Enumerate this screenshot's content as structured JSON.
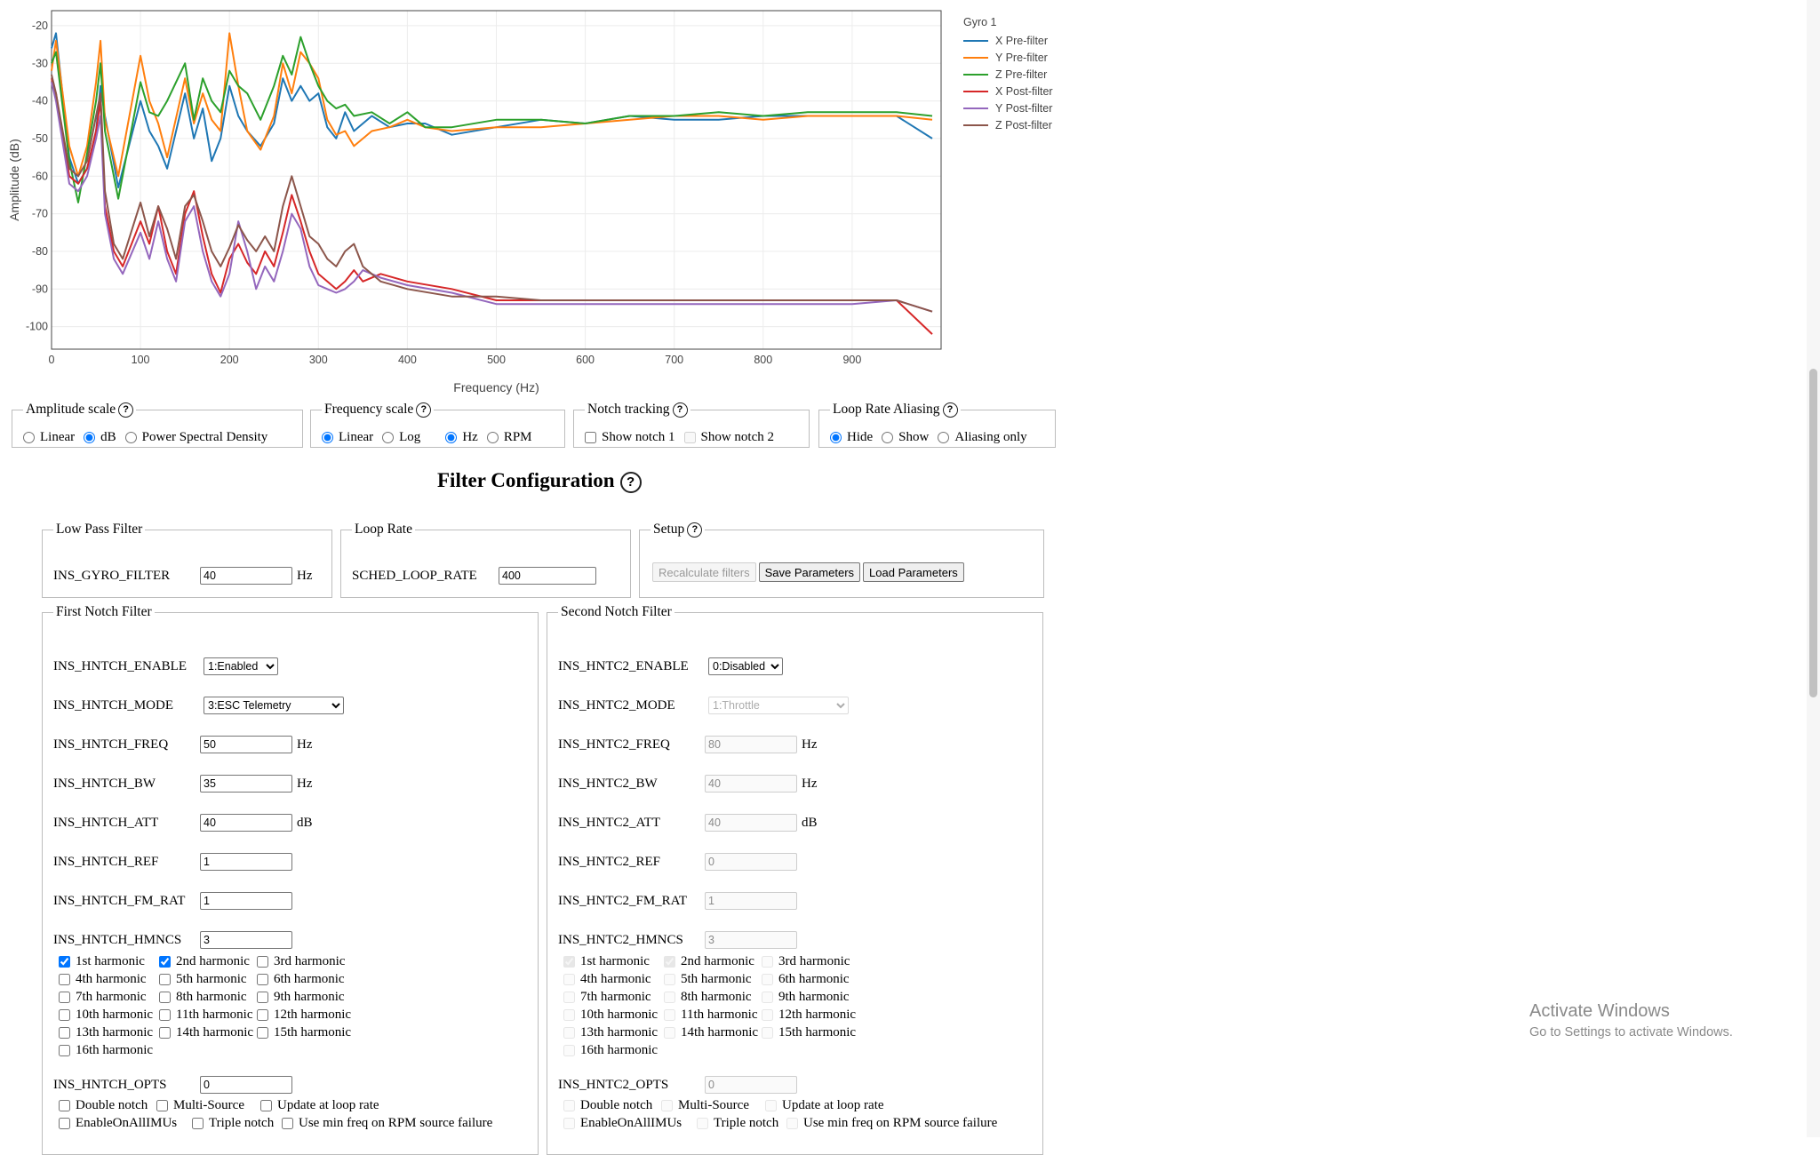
{
  "chart_data": {
    "type": "line",
    "title": "",
    "xlabel": "Frequency (Hz)",
    "ylabel": "Amplitude (dB)",
    "xlim": [
      0,
      1000
    ],
    "ylim": [
      -106,
      -16
    ],
    "x_ticks": [
      0,
      100,
      200,
      300,
      400,
      500,
      600,
      700,
      800,
      900
    ],
    "y_ticks": [
      -20,
      -30,
      -40,
      -50,
      -60,
      -70,
      -80,
      -90,
      -100
    ],
    "grid": true,
    "legend_title": "Gyro 1",
    "legend_position": "right",
    "series": [
      {
        "name": "X Pre-filter",
        "color": "#1f77b4",
        "x": [
          0,
          5,
          20,
          30,
          40,
          50,
          55,
          60,
          75,
          100,
          110,
          120,
          130,
          150,
          160,
          170,
          180,
          190,
          200,
          210,
          220,
          235,
          250,
          260,
          270,
          280,
          290,
          300,
          310,
          320,
          330,
          340,
          360,
          380,
          400,
          420,
          450,
          500,
          550,
          600,
          650,
          700,
          750,
          800,
          850,
          900,
          950,
          990
        ],
        "y": [
          -26,
          -22,
          -55,
          -62,
          -58,
          -48,
          -36,
          -44,
          -63,
          -40,
          -48,
          -52,
          -58,
          -38,
          -50,
          -42,
          -56,
          -50,
          -36,
          -44,
          -48,
          -52,
          -46,
          -34,
          -40,
          -36,
          -40,
          -38,
          -47,
          -50,
          -43,
          -48,
          -44,
          -47,
          -46,
          -46,
          -49,
          -47,
          -45,
          -46,
          -44,
          -45,
          -45,
          -44,
          -44,
          -44,
          -44,
          -50
        ]
      },
      {
        "name": "Y Pre-filter",
        "color": "#ff7f0e",
        "x": [
          0,
          5,
          20,
          30,
          40,
          50,
          55,
          60,
          75,
          100,
          110,
          120,
          130,
          150,
          160,
          170,
          180,
          190,
          200,
          210,
          220,
          235,
          250,
          260,
          270,
          280,
          290,
          300,
          310,
          320,
          330,
          340,
          360,
          380,
          400,
          420,
          450,
          500,
          550,
          600,
          650,
          700,
          750,
          800,
          850,
          900,
          950,
          990
        ],
        "y": [
          -32,
          -24,
          -52,
          -60,
          -52,
          -35,
          -24,
          -45,
          -60,
          -28,
          -40,
          -46,
          -55,
          -34,
          -46,
          -38,
          -45,
          -48,
          -22,
          -36,
          -48,
          -53,
          -44,
          -30,
          -38,
          -27,
          -30,
          -34,
          -45,
          -49,
          -48,
          -52,
          -48,
          -47,
          -45,
          -47,
          -48,
          -47,
          -47,
          -46,
          -45,
          -44,
          -44,
          -45,
          -44,
          -44,
          -44,
          -45
        ]
      },
      {
        "name": "Z Pre-filter",
        "color": "#2ca02c",
        "x": [
          0,
          5,
          20,
          30,
          40,
          50,
          55,
          60,
          75,
          100,
          110,
          120,
          130,
          150,
          160,
          170,
          180,
          190,
          200,
          210,
          220,
          235,
          250,
          260,
          270,
          280,
          290,
          300,
          310,
          320,
          330,
          340,
          360,
          380,
          400,
          420,
          450,
          500,
          550,
          600,
          650,
          700,
          750,
          800,
          850,
          900,
          950,
          990
        ],
        "y": [
          -30,
          -27,
          -56,
          -67,
          -54,
          -40,
          -30,
          -48,
          -66,
          -35,
          -43,
          -44,
          -40,
          -30,
          -45,
          -34,
          -40,
          -43,
          -32,
          -36,
          -38,
          -45,
          -36,
          -28,
          -33,
          -23,
          -30,
          -36,
          -40,
          -42,
          -41,
          -44,
          -43,
          -46,
          -43,
          -47,
          -47,
          -45,
          -45,
          -46,
          -44,
          -44,
          -43,
          -44,
          -43,
          -43,
          -43,
          -44
        ]
      },
      {
        "name": "X Post-filter",
        "color": "#d62728",
        "x": [
          0,
          5,
          20,
          30,
          40,
          50,
          55,
          60,
          70,
          80,
          100,
          110,
          120,
          130,
          140,
          150,
          160,
          170,
          180,
          190,
          200,
          210,
          220,
          230,
          240,
          250,
          260,
          270,
          280,
          290,
          300,
          310,
          320,
          330,
          340,
          350,
          370,
          400,
          450,
          500,
          550,
          600,
          650,
          700,
          750,
          800,
          850,
          900,
          950,
          990
        ],
        "y": [
          -34,
          -38,
          -60,
          -62,
          -58,
          -48,
          -40,
          -68,
          -80,
          -84,
          -72,
          -78,
          -68,
          -80,
          -86,
          -70,
          -64,
          -76,
          -86,
          -91,
          -82,
          -78,
          -83,
          -86,
          -80,
          -84,
          -75,
          -65,
          -72,
          -80,
          -86,
          -88,
          -90,
          -88,
          -85,
          -88,
          -86,
          -88,
          -90,
          -93,
          -93,
          -93,
          -93,
          -93,
          -93,
          -93,
          -93,
          -93,
          -93,
          -102
        ]
      },
      {
        "name": "Y Post-filter",
        "color": "#9467bd",
        "x": [
          0,
          5,
          20,
          30,
          40,
          50,
          55,
          60,
          70,
          80,
          100,
          110,
          120,
          130,
          140,
          150,
          160,
          170,
          180,
          190,
          200,
          210,
          220,
          230,
          240,
          250,
          260,
          270,
          280,
          290,
          300,
          310,
          320,
          330,
          340,
          350,
          370,
          400,
          450,
          500,
          550,
          600,
          650,
          700,
          750,
          800,
          850,
          900,
          950,
          990
        ],
        "y": [
          -35,
          -40,
          -62,
          -64,
          -60,
          -50,
          -44,
          -70,
          -82,
          -86,
          -75,
          -82,
          -72,
          -82,
          -88,
          -72,
          -68,
          -80,
          -88,
          -92,
          -86,
          -72,
          -80,
          -90,
          -84,
          -88,
          -80,
          -70,
          -74,
          -84,
          -89,
          -90,
          -91,
          -90,
          -88,
          -85,
          -87,
          -89,
          -91,
          -94,
          -94,
          -94,
          -94,
          -94,
          -94,
          -94,
          -94,
          -94,
          -93,
          -96
        ]
      },
      {
        "name": "Z Post-filter",
        "color": "#8c564b",
        "x": [
          0,
          5,
          20,
          30,
          40,
          50,
          55,
          60,
          70,
          80,
          100,
          110,
          120,
          130,
          140,
          150,
          160,
          170,
          180,
          190,
          200,
          210,
          220,
          230,
          240,
          250,
          260,
          270,
          280,
          290,
          300,
          310,
          320,
          330,
          340,
          350,
          370,
          400,
          450,
          500,
          550,
          600,
          650,
          700,
          750,
          800,
          850,
          900,
          950,
          990
        ],
        "y": [
          -33,
          -38,
          -58,
          -60,
          -56,
          -44,
          -38,
          -64,
          -78,
          -82,
          -67,
          -76,
          -68,
          -74,
          -82,
          -68,
          -65,
          -72,
          -80,
          -84,
          -79,
          -73,
          -77,
          -80,
          -76,
          -80,
          -68,
          -60,
          -68,
          -76,
          -78,
          -82,
          -84,
          -80,
          -78,
          -84,
          -88,
          -90,
          -92,
          -92,
          -93,
          -93,
          -93,
          -93,
          -93,
          -93,
          -93,
          -93,
          -93,
          -96
        ]
      }
    ]
  },
  "controls": {
    "amplitude": {
      "legend": "Amplitude scale",
      "options": [
        "Linear",
        "dB",
        "Power Spectral Density"
      ],
      "selected": "dB"
    },
    "frequency": {
      "legend": "Frequency scale",
      "options": [
        "Linear",
        "Log",
        "Hz",
        "RPM"
      ],
      "selected": [
        "Linear",
        "Hz"
      ]
    },
    "notch": {
      "legend": "Notch tracking",
      "options": [
        "Show notch 1",
        "Show notch 2"
      ]
    },
    "aliasing": {
      "legend": "Loop Rate Aliasing",
      "options": [
        "Hide",
        "Show",
        "Aliasing only"
      ],
      "selected": "Hide"
    }
  },
  "filter_config": {
    "title": "Filter Configuration",
    "lpf": {
      "legend": "Low Pass Filter",
      "param": "INS_GYRO_FILTER",
      "value": "40",
      "unit": "Hz"
    },
    "loop": {
      "legend": "Loop Rate",
      "param": "SCHED_LOOP_RATE",
      "value": "400"
    },
    "setup": {
      "legend": "Setup",
      "buttons": [
        "Recalculate filters",
        "Save Parameters",
        "Load Parameters"
      ]
    }
  },
  "notch1": {
    "legend": "First Notch Filter",
    "enable": {
      "name": "INS_HNTCH_ENABLE",
      "value": "1:Enabled"
    },
    "mode": {
      "name": "INS_HNTCH_MODE",
      "value": "3:ESC Telemetry"
    },
    "freq": {
      "name": "INS_HNTCH_FREQ",
      "value": "50",
      "unit": "Hz"
    },
    "bw": {
      "name": "INS_HNTCH_BW",
      "value": "35",
      "unit": "Hz"
    },
    "att": {
      "name": "INS_HNTCH_ATT",
      "value": "40",
      "unit": "dB"
    },
    "ref": {
      "name": "INS_HNTCH_REF",
      "value": "1"
    },
    "fm_rat": {
      "name": "INS_HNTCH_FM_RAT",
      "value": "1"
    },
    "hmncs": {
      "name": "INS_HNTCH_HMNCS",
      "value": "3"
    },
    "harmonics_checked": [
      true,
      true,
      false,
      false,
      false,
      false,
      false,
      false,
      false,
      false,
      false,
      false,
      false,
      false,
      false,
      false
    ],
    "opts": {
      "name": "INS_HNTCH_OPTS",
      "value": "0"
    }
  },
  "notch2": {
    "legend": "Second Notch Filter",
    "enable": {
      "name": "INS_HNTC2_ENABLE",
      "value": "0:Disabled"
    },
    "mode": {
      "name": "INS_HNTC2_MODE",
      "value": "1:Throttle"
    },
    "freq": {
      "name": "INS_HNTC2_FREQ",
      "value": "80",
      "unit": "Hz"
    },
    "bw": {
      "name": "INS_HNTC2_BW",
      "value": "40",
      "unit": "Hz"
    },
    "att": {
      "name": "INS_HNTC2_ATT",
      "value": "40",
      "unit": "dB"
    },
    "ref": {
      "name": "INS_HNTC2_REF",
      "value": "0"
    },
    "fm_rat": {
      "name": "INS_HNTC2_FM_RAT",
      "value": "1"
    },
    "hmncs": {
      "name": "INS_HNTC2_HMNCS",
      "value": "3"
    },
    "harmonics_checked": [
      true,
      true,
      false,
      false,
      false,
      false,
      false,
      false,
      false,
      false,
      false,
      false,
      false,
      false,
      false,
      false
    ],
    "opts": {
      "name": "INS_HNTC2_OPTS",
      "value": "0"
    }
  },
  "harmonic_labels": [
    "1st harmonic",
    "2nd harmonic",
    "3rd harmonic",
    "4th harmonic",
    "5th harmonic",
    "6th harmonic",
    "7th harmonic",
    "8th harmonic",
    "9th harmonic",
    "10th harmonic",
    "11th harmonic",
    "12th harmonic",
    "13th harmonic",
    "14th harmonic",
    "15th harmonic",
    "16th harmonic"
  ],
  "option_labels": [
    "Double notch",
    "Multi-Source",
    "Update at loop rate",
    "EnableOnAllIMUs",
    "Triple notch",
    "Use min freq on RPM source failure"
  ],
  "watermark": {
    "line1": "Activate Windows",
    "line2": "Go to Settings to activate Windows."
  }
}
